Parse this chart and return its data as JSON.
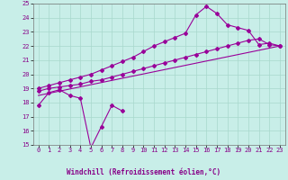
{
  "bg_color": "#c8eee8",
  "grid_color": "#a8d8cc",
  "line_color": "#990099",
  "xlabel": "Windchill (Refroidissement éolien,°C)",
  "xlim": [
    -0.5,
    23.5
  ],
  "ylim": [
    15,
    25
  ],
  "yticks": [
    15,
    16,
    17,
    18,
    19,
    20,
    21,
    22,
    23,
    24,
    25
  ],
  "xticks": [
    0,
    1,
    2,
    3,
    4,
    5,
    6,
    7,
    8,
    9,
    10,
    11,
    12,
    13,
    14,
    15,
    16,
    17,
    18,
    19,
    20,
    21,
    22,
    23
  ],
  "line1_x": [
    0,
    1,
    2,
    3,
    4,
    5,
    6,
    7,
    8
  ],
  "line1_y": [
    17.8,
    18.7,
    18.9,
    18.5,
    18.3,
    14.8,
    16.3,
    17.8,
    17.4
  ],
  "line2_x": [
    0,
    1,
    2,
    3,
    4,
    5,
    6,
    7,
    8,
    9,
    10,
    11,
    12,
    13,
    14,
    15,
    16,
    17,
    18,
    19,
    20,
    21,
    22,
    23
  ],
  "line2_y": [
    18.8,
    19.0,
    19.1,
    19.2,
    19.3,
    19.5,
    19.6,
    19.8,
    20.0,
    20.2,
    20.4,
    20.6,
    20.8,
    21.0,
    21.2,
    21.4,
    21.6,
    21.8,
    22.0,
    22.2,
    22.4,
    22.5,
    22.1,
    22.0
  ],
  "line3_x": [
    0,
    1,
    2,
    3,
    4,
    5,
    6,
    7,
    8,
    9,
    10,
    11,
    12,
    13,
    14,
    15,
    16,
    17,
    18,
    19,
    20,
    21,
    22,
    23
  ],
  "line3_y": [
    19.0,
    19.2,
    19.4,
    19.6,
    19.8,
    20.0,
    20.3,
    20.6,
    20.9,
    21.2,
    21.6,
    22.0,
    22.3,
    22.6,
    22.9,
    24.2,
    24.8,
    24.3,
    23.5,
    23.3,
    23.1,
    22.1,
    22.2,
    22.0
  ],
  "line4_x": [
    0,
    23
  ],
  "line4_y": [
    18.5,
    22.0
  ],
  "marker": "D",
  "marker_size": 2,
  "linewidth": 0.8,
  "tick_fontsize": 5,
  "xlabel_fontsize": 5.5,
  "xlabel_color": "#880088"
}
